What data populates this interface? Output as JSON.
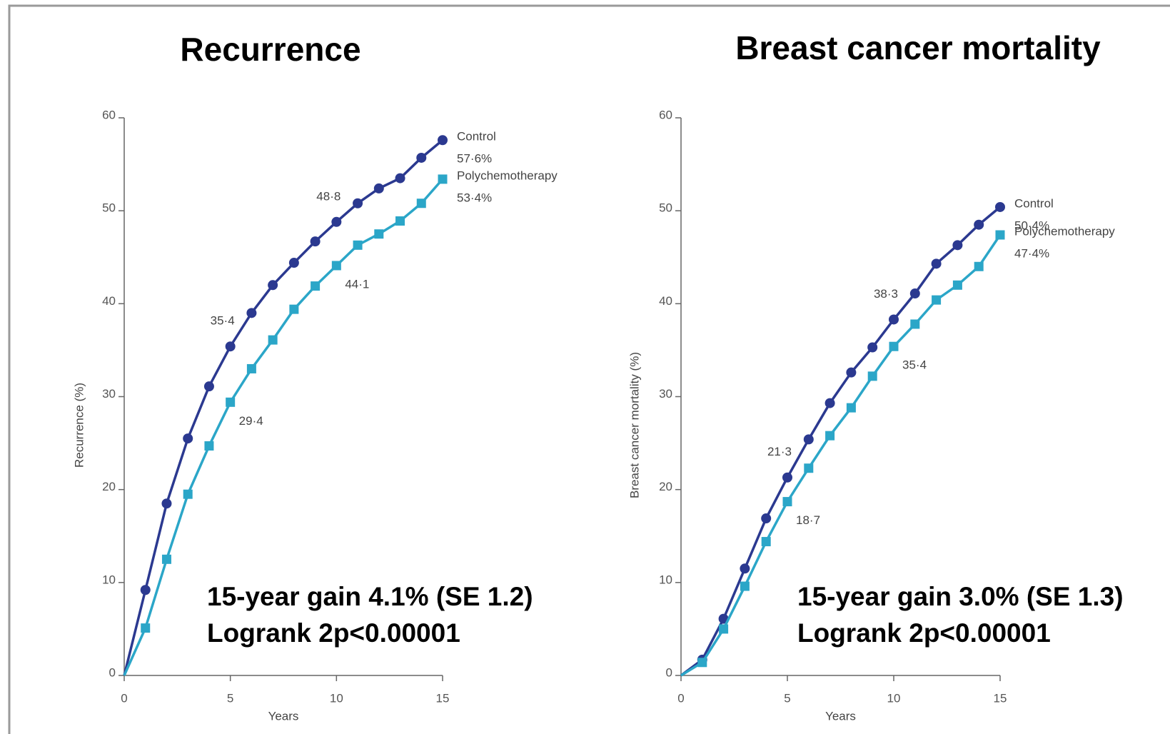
{
  "chart_data": [
    {
      "type": "line",
      "title": "Recurrence",
      "ylabel": "Recurrence (%)",
      "xlabel": "Years",
      "annotation": [
        "15-year gain 4.1% (SE 1.2)",
        "Logrank 2p<0.00001"
      ],
      "x": [
        0,
        1,
        2,
        3,
        4,
        5,
        6,
        7,
        8,
        9,
        10,
        11,
        12,
        13,
        14,
        15
      ],
      "xlim": [
        0,
        15
      ],
      "ylim": [
        0,
        60
      ],
      "xticks": [
        0,
        5,
        10,
        15
      ],
      "yticks": [
        0,
        10,
        20,
        30,
        40,
        50,
        60
      ],
      "series": [
        {
          "name": "Control",
          "color": "#2b3990",
          "marker": "circle",
          "values": [
            0,
            9.2,
            18.5,
            25.5,
            31.1,
            35.4,
            39.0,
            42.0,
            44.4,
            46.7,
            48.8,
            50.8,
            52.4,
            53.5,
            55.7,
            57.6
          ],
          "value_labels": [
            null,
            null,
            null,
            null,
            null,
            "35·4",
            null,
            null,
            null,
            null,
            "48·8",
            null,
            null,
            null,
            null,
            "57·6%"
          ]
        },
        {
          "name": "Polychemotherapy",
          "color": "#2ba6c8",
          "marker": "square",
          "values": [
            0,
            5.1,
            12.5,
            19.5,
            24.7,
            29.4,
            33.0,
            36.1,
            39.4,
            41.9,
            44.1,
            46.3,
            47.5,
            48.9,
            50.8,
            53.4
          ],
          "value_labels": [
            null,
            null,
            null,
            null,
            null,
            "29·4",
            null,
            null,
            null,
            null,
            "44·1",
            null,
            null,
            null,
            null,
            "53·4%"
          ]
        }
      ]
    },
    {
      "type": "line",
      "title": "Breast cancer mortality",
      "ylabel": "Breast cancer mortality (%)",
      "xlabel": "Years",
      "annotation": [
        "15-year gain 3.0% (SE 1.3)",
        "Logrank 2p<0.00001"
      ],
      "x": [
        0,
        1,
        2,
        3,
        4,
        5,
        6,
        7,
        8,
        9,
        10,
        11,
        12,
        13,
        14,
        15
      ],
      "xlim": [
        0,
        15
      ],
      "ylim": [
        0,
        60
      ],
      "xticks": [
        0,
        5,
        10,
        15
      ],
      "yticks": [
        0,
        10,
        20,
        30,
        40,
        50,
        60
      ],
      "series": [
        {
          "name": "Control",
          "color": "#2b3990",
          "marker": "circle",
          "values": [
            0,
            1.7,
            6.1,
            11.5,
            16.9,
            21.3,
            25.4,
            29.3,
            32.6,
            35.3,
            38.3,
            41.1,
            44.3,
            46.3,
            48.5,
            50.4
          ],
          "value_labels": [
            null,
            null,
            null,
            null,
            null,
            "21·3",
            null,
            null,
            null,
            null,
            "38·3",
            null,
            null,
            null,
            null,
            "50·4%"
          ]
        },
        {
          "name": "Polychemotherapy",
          "color": "#2ba6c8",
          "marker": "square",
          "values": [
            0,
            1.4,
            5.0,
            9.6,
            14.4,
            18.7,
            22.3,
            25.8,
            28.8,
            32.2,
            35.4,
            37.8,
            40.4,
            42.0,
            44.0,
            47.4
          ],
          "value_labels": [
            null,
            null,
            null,
            null,
            null,
            "18·7",
            null,
            null,
            null,
            null,
            "35·4",
            null,
            null,
            null,
            null,
            "47·4%"
          ]
        }
      ]
    }
  ]
}
